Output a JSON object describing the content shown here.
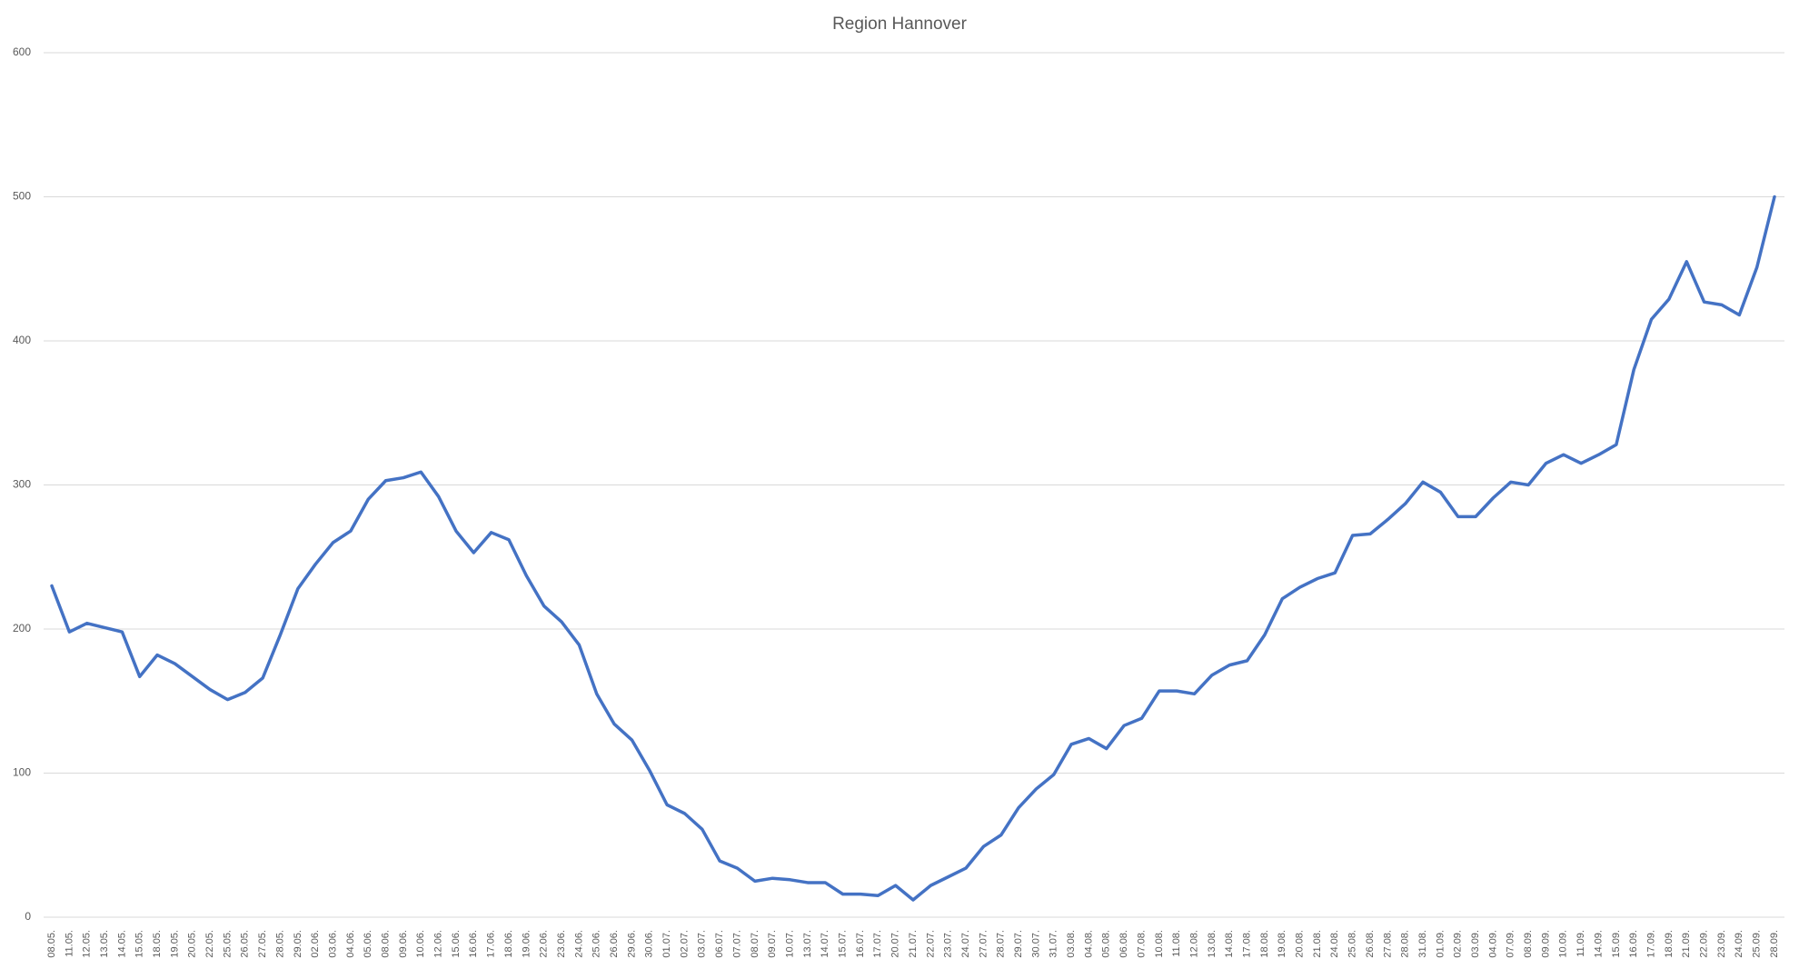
{
  "chart_data": {
    "type": "line",
    "title": "Region Hannover",
    "categories": [
      "08.05.",
      "11.05.",
      "12.05.",
      "13.05.",
      "14.05.",
      "15.05.",
      "18.05.",
      "19.05.",
      "20.05.",
      "22.05.",
      "25.05.",
      "26.05.",
      "27.05.",
      "28.05.",
      "29.05.",
      "02.06.",
      "03.06.",
      "04.06.",
      "05.06.",
      "08.06.",
      "09.06.",
      "10.06.",
      "12.06.",
      "15.06.",
      "16.06.",
      "17.06.",
      "18.06.",
      "19.06.",
      "22.06.",
      "23.06.",
      "24.06.",
      "25.06.",
      "26.06.",
      "29.06.",
      "30.06.",
      "01.07.",
      "02.07.",
      "03.07.",
      "06.07.",
      "07.07.",
      "08.07.",
      "09.07.",
      "10.07.",
      "13.07.",
      "14.07.",
      "15.07.",
      "16.07.",
      "17.07.",
      "20.07.",
      "21.07.",
      "22.07.",
      "23.07.",
      "24.07.",
      "27.07.",
      "28.07.",
      "29.07.",
      "30.07.",
      "31.07.",
      "03.08.",
      "04.08.",
      "05.08.",
      "06.08.",
      "07.08.",
      "10.08.",
      "11.08.",
      "12.08.",
      "13.08.",
      "14.08.",
      "17.08.",
      "18.08.",
      "19.08.",
      "20.08.",
      "21.08.",
      "24.08.",
      "25.08.",
      "26.08.",
      "27.08.",
      "28.08.",
      "31.08.",
      "01.09.",
      "02.09.",
      "03.09.",
      "04.09.",
      "07.09.",
      "08.09.",
      "09.09.",
      "10.09.",
      "11.09.",
      "14.09.",
      "15.09.",
      "16.09.",
      "17.09.",
      "18.09.",
      "21.09.",
      "22.09.",
      "23.09.",
      "24.09.",
      "25.09.",
      "28.09."
    ],
    "series": [
      {
        "name": "Region Hannover",
        "color": "#4472c4",
        "values": [
          230,
          198,
          204,
          201,
          198,
          167,
          182,
          176,
          167,
          158,
          151,
          156,
          166,
          196,
          228,
          245,
          260,
          268,
          290,
          303,
          305,
          309,
          292,
          268,
          253,
          267,
          262,
          237,
          216,
          205,
          189,
          155,
          134,
          123,
          102,
          78,
          72,
          61,
          39,
          34,
          25,
          27,
          26,
          24,
          24,
          16,
          16,
          15,
          22,
          12,
          22,
          28,
          34,
          49,
          57,
          76,
          89,
          99,
          120,
          124,
          117,
          133,
          138,
          157,
          157,
          155,
          168,
          175,
          178,
          196,
          221,
          229,
          235,
          239,
          265,
          266,
          276,
          287,
          302,
          295,
          278,
          278,
          291,
          302,
          300,
          315,
          321,
          315,
          321,
          328,
          380,
          415,
          429,
          455,
          427,
          425,
          418,
          451,
          500
        ]
      }
    ],
    "ylim": [
      0,
      600
    ],
    "yticks": [
      0,
      100,
      200,
      300,
      400,
      500,
      600
    ],
    "grid": true
  }
}
